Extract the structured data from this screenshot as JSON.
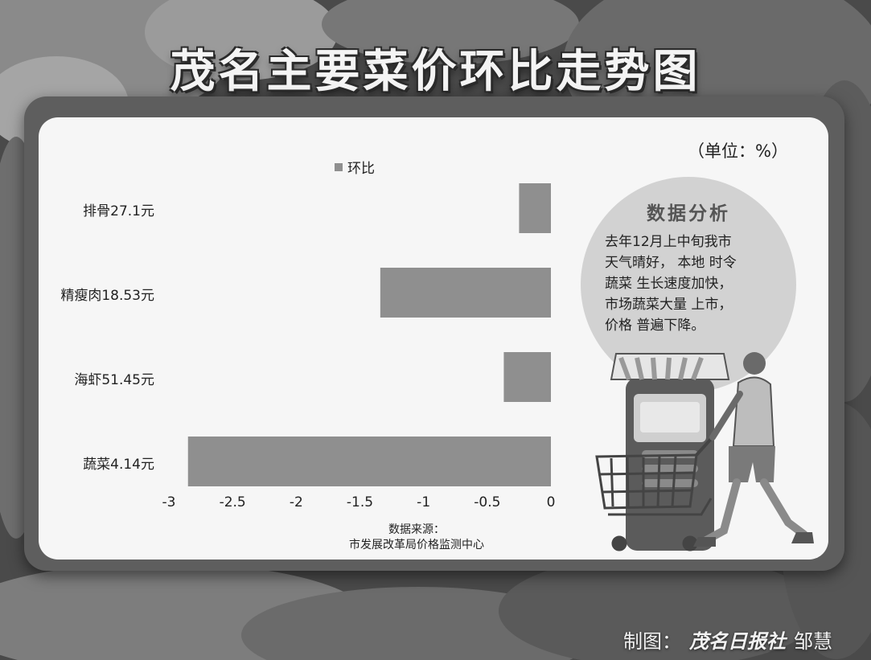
{
  "title": "茂名主要菜价环比走势图",
  "unit": "（单位：%）",
  "chart_data": {
    "type": "bar",
    "orientation": "horizontal",
    "categories": [
      "排骨27.1元",
      "精瘦肉18.53元",
      "海虾51.45元",
      "蔬菜4.14元"
    ],
    "series": [
      {
        "name": "环比",
        "values": [
          -0.25,
          -1.34,
          -0.37,
          -2.85
        ]
      }
    ],
    "xlim": [
      -3,
      0
    ],
    "xticks": [
      "-3",
      "-2.5",
      "-2",
      "-1.5",
      "-1",
      "-0.5",
      "0"
    ],
    "legend_position": "top",
    "grid": false,
    "bar_color": "#8f8f8f"
  },
  "source": {
    "line1": "数据来源：",
    "line2": "市发展改革局价格监测中心"
  },
  "analysis": {
    "title": "数据分析",
    "lines": [
      "去年12月上中旬我市",
      "天气晴好， 本地 时令",
      "蔬菜 生长速度加快，",
      "市场蔬菜大量 上市，",
      "价格 普遍下降。"
    ]
  },
  "credit": {
    "prefix": "制图：",
    "brand": "茂名日报社",
    "author": "邹慧"
  }
}
